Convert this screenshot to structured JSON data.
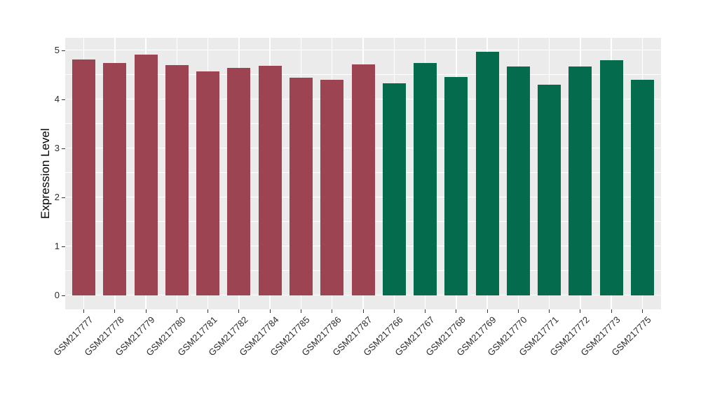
{
  "chart_data": {
    "type": "bar",
    "title": "",
    "xlabel": "",
    "ylabel": "Expression Level",
    "ylim": [
      0,
      5.25
    ],
    "yticks": [
      0,
      1,
      2,
      3,
      4,
      5
    ],
    "ytick_labels": [
      "0",
      "1",
      "2",
      "3",
      "4",
      "5"
    ],
    "categories": [
      "GSM217777",
      "GSM217778",
      "GSM217779",
      "GSM217780",
      "GSM217781",
      "GSM217782",
      "GSM217784",
      "GSM217785",
      "GSM217786",
      "GSM217787",
      "GSM217766",
      "GSM217767",
      "GSM217768",
      "GSM217769",
      "GSM217770",
      "GSM217771",
      "GSM217772",
      "GSM217773",
      "GSM217775"
    ],
    "values": [
      4.81,
      4.74,
      4.91,
      4.7,
      4.57,
      4.63,
      4.68,
      4.44,
      4.39,
      4.71,
      4.32,
      4.74,
      4.45,
      4.97,
      4.67,
      4.3,
      4.66,
      4.79,
      4.4
    ],
    "bar_groups": [
      0,
      0,
      0,
      0,
      0,
      0,
      0,
      0,
      0,
      0,
      1,
      1,
      1,
      1,
      1,
      1,
      1,
      1,
      1
    ],
    "group_colors": [
      "#9D4452",
      "#046B4C"
    ],
    "grid": "major and minor horizontal white gridlines, vertical white gridlines at category centers",
    "legend_position": "none"
  },
  "style": {
    "figure_background": "#FFFFFF",
    "panel_background": "#EBEBEB",
    "grid_color": "#FFFFFF",
    "axis_text_color": "#2B2B2B",
    "axis_title_color": "#000000",
    "tick_mark_color": "#333333"
  }
}
